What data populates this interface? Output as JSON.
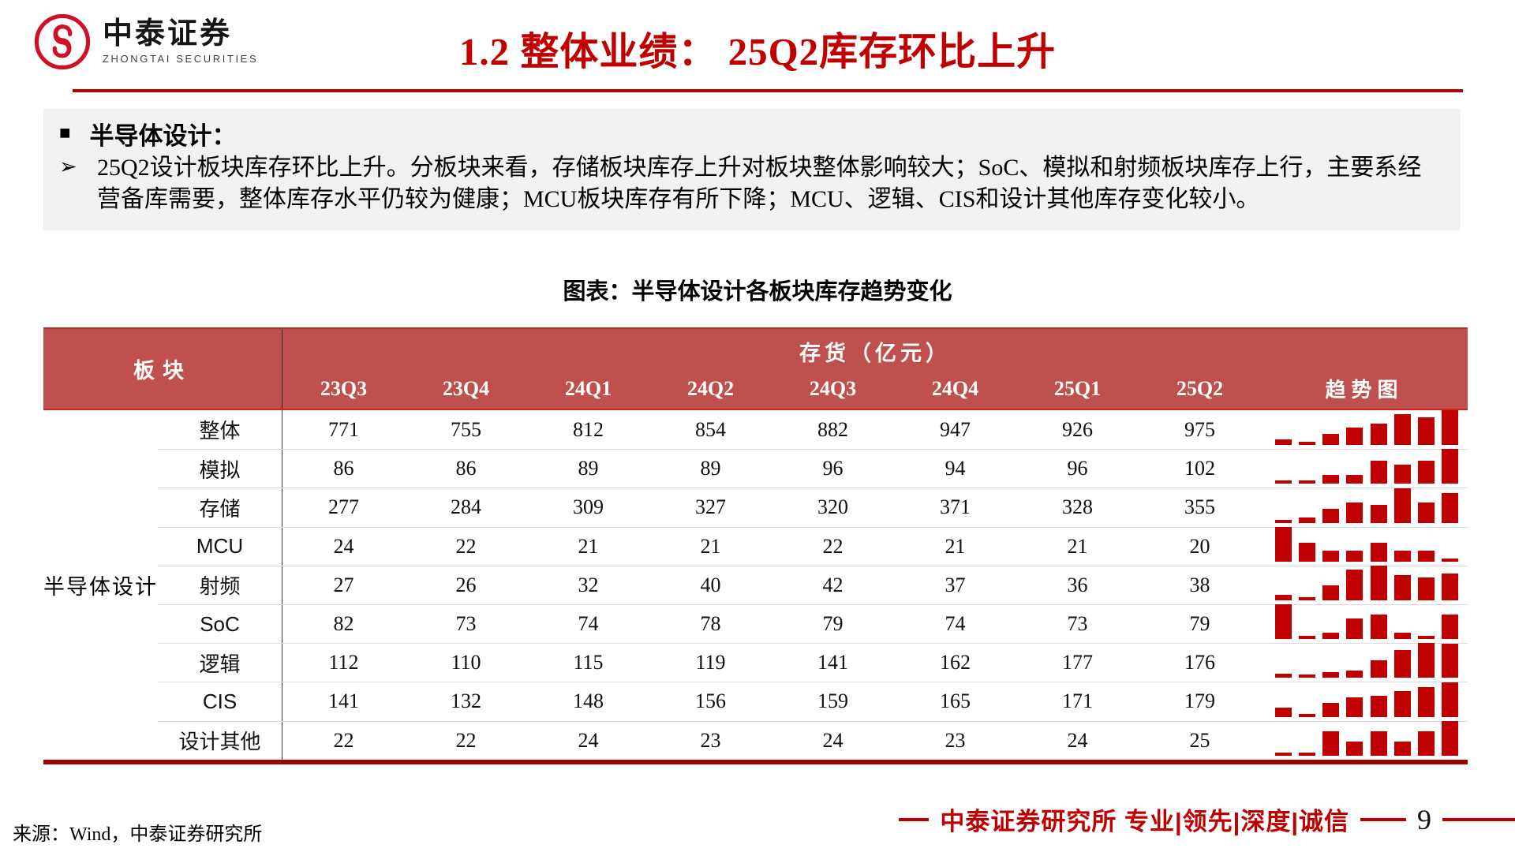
{
  "slide": {
    "logo_cn": "中泰证券",
    "logo_en": "ZHONGTAI SECURITIES",
    "title": "1.2 整体业绩： 25Q2库存环比上升",
    "bullet_heading": "半导体设计：",
    "bullet_paragraph": "25Q2设计板块库存环比上升。分板块来看，存储板块库存上升对板块整体影响较大；SoC、模拟和射频板块库存上行，主要系经营备库需要，整体库存水平仍较为健康；MCU板块库存有所下降；MCU、逻辑、CIS和设计其他库存变化较小。",
    "chart_caption": "图表：半导体设计各板块库存趋势变化",
    "footer_source": "来源：Wind，中泰证券研究所",
    "footer_brand": "中泰证券研究所 专业|领先|深度|诚信",
    "page_number": "9"
  },
  "icons": {
    "square_bullet": "■",
    "arrow_bullet": "➢"
  },
  "colors": {
    "title_red": "#C00000",
    "header_bg": "#C0504D",
    "spark_bar": "#C00000",
    "table_bottom": "#A00000"
  },
  "chart_data": {
    "type": "table",
    "header_col": "板块",
    "value_header": "存货（亿元）",
    "trend_header": "趋势图",
    "group_label": "半导体设计",
    "quarters": [
      "23Q3",
      "23Q4",
      "24Q1",
      "24Q2",
      "24Q3",
      "24Q4",
      "25Q1",
      "25Q2"
    ],
    "rows": [
      {
        "label": "整体",
        "values": [
          771,
          755,
          812,
          854,
          882,
          947,
          926,
          975
        ]
      },
      {
        "label": "模拟",
        "values": [
          86,
          86,
          89,
          89,
          96,
          94,
          96,
          102
        ]
      },
      {
        "label": "存储",
        "values": [
          277,
          284,
          309,
          327,
          320,
          371,
          328,
          355
        ]
      },
      {
        "label": "MCU",
        "values": [
          24,
          22,
          21,
          21,
          22,
          21,
          21,
          20
        ]
      },
      {
        "label": "射频",
        "values": [
          27,
          26,
          32,
          40,
          42,
          37,
          36,
          38
        ]
      },
      {
        "label": "SoC",
        "values": [
          82,
          73,
          74,
          78,
          79,
          74,
          73,
          79
        ]
      },
      {
        "label": "逻辑",
        "values": [
          112,
          110,
          115,
          119,
          141,
          162,
          177,
          176
        ]
      },
      {
        "label": "CIS",
        "values": [
          141,
          132,
          148,
          156,
          159,
          165,
          171,
          179
        ]
      },
      {
        "label": "设计其他",
        "values": [
          22,
          22,
          24,
          23,
          24,
          23,
          24,
          25
        ]
      }
    ],
    "sparkline_note": "bars scaled per-row from min (dash) to max (full height)"
  }
}
